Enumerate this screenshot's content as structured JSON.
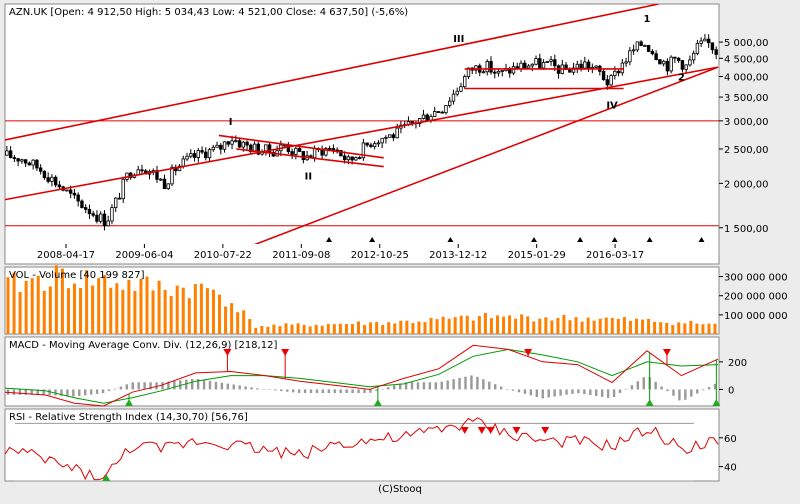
{
  "chart_data": {
    "type": "candlestick",
    "symbol": "AZN.UK",
    "main_title": "AZN.UK [Open: 4 912,50  High: 5 034,43  Low: 4 521,00  Close: 4 637,50] (-5,6%)",
    "x_tick_labels": [
      "2008-04-17",
      "2009-06-04",
      "2010-07-22",
      "2011-09-08",
      "2012-10-25",
      "2013-12-12",
      "2015-01-29",
      "2016-03-17"
    ],
    "x_ticks": [
      "2008-04-17",
      "2009-06-04",
      "2010-07-22",
      "2011-09-08",
      "2012-10-25",
      "2013-12-12",
      "2015-01-29",
      "2016-03-17"
    ],
    "x_range": [
      "2007-06-01",
      "2017-09-15"
    ],
    "price_scale": "log",
    "price_range": [
      1350,
      6400
    ],
    "y_tick_values": [
      1500,
      2000,
      2500,
      3000,
      3500,
      4000,
      4500,
      5000
    ],
    "y_tick_labels": [
      "1 500,00",
      "2 000,00",
      "2 500,00",
      "3 000,00",
      "3 500,00",
      "4 000,00",
      "4 500,00",
      "5 000,00"
    ],
    "horizontal_levels": [
      1520,
      3000
    ],
    "price_path": [
      [
        "2007-06-01",
        2400
      ],
      [
        "2007-09-01",
        2350
      ],
      [
        "2007-12-01",
        2200
      ],
      [
        "2008-03-01",
        2000
      ],
      [
        "2008-06-01",
        1800
      ],
      [
        "2008-09-15",
        1640
      ],
      [
        "2008-11-15",
        1560
      ],
      [
        "2009-01-15",
        1820
      ],
      [
        "2009-03-15",
        2150
      ],
      [
        "2009-05-15",
        2250
      ],
      [
        "2009-07-15",
        2150
      ],
      [
        "2009-09-15",
        2000
      ],
      [
        "2009-11-15",
        2200
      ],
      [
        "2010-01-15",
        2320
      ],
      [
        "2010-04-15",
        2450
      ],
      [
        "2010-07-01",
        2500
      ],
      [
        "2010-09-01",
        2700
      ],
      [
        "2010-11-01",
        2580
      ],
      [
        "2011-01-15",
        2500
      ],
      [
        "2011-04-01",
        2460
      ],
      [
        "2011-06-15",
        2560
      ],
      [
        "2011-08-15",
        2420
      ],
      [
        "2011-10-15",
        2380
      ],
      [
        "2011-12-15",
        2480
      ],
      [
        "2012-03-01",
        2520
      ],
      [
        "2012-05-15",
        2300
      ],
      [
        "2012-07-15",
        2470
      ],
      [
        "2012-09-15",
        2640
      ],
      [
        "2012-11-15",
        2700
      ],
      [
        "2013-01-15",
        2750
      ],
      [
        "2013-04-15",
        2950
      ],
      [
        "2013-07-15",
        3150
      ],
      [
        "2013-09-15",
        3250
      ],
      [
        "2013-12-01",
        3650
      ],
      [
        "2014-02-15",
        4200
      ],
      [
        "2014-05-01",
        4300
      ],
      [
        "2014-07-15",
        4050
      ],
      [
        "2014-10-15",
        4250
      ],
      [
        "2015-01-15",
        4350
      ],
      [
        "2015-04-15",
        4300
      ],
      [
        "2015-06-15",
        4150
      ],
      [
        "2015-08-15",
        4250
      ],
      [
        "2015-10-15",
        4350
      ],
      [
        "2016-01-01",
        4080
      ],
      [
        "2016-02-15",
        3800
      ],
      [
        "2016-04-15",
        4300
      ],
      [
        "2016-06-15",
        4700
      ],
      [
        "2016-08-15",
        5000
      ],
      [
        "2016-10-15",
        4650
      ],
      [
        "2016-12-15",
        4300
      ],
      [
        "2017-02-01",
        4500
      ],
      [
        "2017-04-01",
        4250
      ],
      [
        "2017-06-01",
        4900
      ],
      [
        "2017-08-01",
        4950
      ],
      [
        "2017-09-10",
        4640
      ]
    ],
    "trendlines": [
      {
        "color": "#dd0000",
        "from": [
          "2007-06-01",
          1800
        ],
        "to": [
          "2017-09-10",
          4250
        ]
      },
      {
        "color": "#dd0000",
        "from": [
          "2007-06-01",
          2650
        ],
        "to": [
          "2016-11-01",
          6400
        ]
      },
      {
        "color": "#dd0000",
        "from": [
          "2008-06-01",
          860
        ],
        "to": [
          "2017-09-10",
          4250
        ]
      },
      {
        "color": "#dd0000",
        "from": [
          "2010-07-01",
          2730
        ],
        "to": [
          "2012-11-15",
          2360
        ]
      },
      {
        "color": "#dd0000",
        "from": [
          "2010-10-01",
          2500
        ],
        "to": [
          "2012-11-15",
          2230
        ]
      },
      {
        "color": "#dd0000",
        "from": [
          "2014-01-15",
          4200
        ],
        "to": [
          "2016-05-01",
          4200
        ]
      },
      {
        "color": "#dd0000",
        "from": [
          "2014-01-15",
          3700
        ],
        "to": [
          "2016-05-01",
          3700
        ]
      }
    ],
    "wave_labels": [
      {
        "text": "I",
        "date": "2010-09-01",
        "price": 2920,
        "color": "#333399"
      },
      {
        "text": "II",
        "date": "2011-10-15",
        "price": 2050,
        "color": "#333399"
      },
      {
        "text": "III",
        "date": "2013-12-15",
        "price": 5000,
        "color": "#333399"
      },
      {
        "text": "IV",
        "date": "2016-03-01",
        "price": 3250,
        "color": "#333399"
      },
      {
        "text": "1",
        "date": "2016-09-01",
        "price": 5700,
        "color": "#cc0000"
      },
      {
        "text": "2",
        "date": "2017-03-01",
        "price": 3900,
        "color": "#cc0000"
      }
    ],
    "markers": [
      "2012-02-01",
      "2012-09-15",
      "2013-11-01",
      "2015-01-15",
      "2015-09-15",
      "2016-03-15",
      "2016-09-15",
      "2017-06-15"
    ],
    "volume": {
      "title": "VOL - Volume [40 199 827]",
      "y_tick_values": [
        100000000,
        200000000,
        300000000
      ],
      "y_tick_labels": [
        "100 000 000",
        "200 000 000",
        "300 000 000"
      ],
      "range": [
        0,
        350000000
      ],
      "bar_color": "#ff8000",
      "level_path": [
        [
          "2007-06-01",
          250000000
        ],
        [
          "2008-03-01",
          300000000
        ],
        [
          "2008-10-01",
          280000000
        ],
        [
          "2009-06-01",
          250000000
        ],
        [
          "2010-06-01",
          230000000
        ],
        [
          "2010-10-01",
          150000000
        ],
        [
          "2011-01-01",
          40000000
        ],
        [
          "2013-01-01",
          60000000
        ],
        [
          "2014-06-01",
          90000000
        ],
        [
          "2016-01-01",
          80000000
        ],
        [
          "2017-09-10",
          50000000
        ]
      ]
    },
    "macd": {
      "title": "MACD - Moving Average Conv. Div. (12,26,9) [218,12]",
      "y_tick_values": [
        0,
        200
      ],
      "y_tick_labels": [
        "0",
        "200"
      ],
      "range": [
        -120,
        380
      ],
      "macd_color": "#dd0000",
      "signal_color": "#009900",
      "hist_color": "#999999",
      "macd_path": [
        [
          "2007-06-01",
          -20
        ],
        [
          "2008-01-01",
          -40
        ],
        [
          "2008-06-01",
          -100
        ],
        [
          "2008-11-01",
          -120
        ],
        [
          "2009-04-01",
          -20
        ],
        [
          "2009-09-01",
          30
        ],
        [
          "2010-03-01",
          120
        ],
        [
          "2010-09-01",
          130
        ],
        [
          "2011-03-01",
          100
        ],
        [
          "2011-09-01",
          60
        ],
        [
          "2012-03-01",
          30
        ],
        [
          "2012-09-01",
          0
        ],
        [
          "2013-03-01",
          80
        ],
        [
          "2013-09-01",
          150
        ],
        [
          "2014-03-01",
          320
        ],
        [
          "2014-09-01",
          290
        ],
        [
          "2015-03-01",
          200
        ],
        [
          "2015-09-01",
          180
        ],
        [
          "2016-03-01",
          50
        ],
        [
          "2016-09-01",
          280
        ],
        [
          "2017-03-01",
          100
        ],
        [
          "2017-09-10",
          220
        ]
      ],
      "signal_path": [
        [
          "2007-06-01",
          10
        ],
        [
          "2008-01-01",
          -10
        ],
        [
          "2008-06-01",
          -60
        ],
        [
          "2008-11-01",
          -100
        ],
        [
          "2009-04-01",
          -60
        ],
        [
          "2009-09-01",
          -10
        ],
        [
          "2010-03-01",
          60
        ],
        [
          "2010-09-01",
          100
        ],
        [
          "2011-03-01",
          100
        ],
        [
          "2011-09-01",
          80
        ],
        [
          "2012-03-01",
          50
        ],
        [
          "2012-09-01",
          20
        ],
        [
          "2013-03-01",
          40
        ],
        [
          "2013-09-01",
          110
        ],
        [
          "2014-03-01",
          240
        ],
        [
          "2014-09-01",
          290
        ],
        [
          "2015-03-01",
          250
        ],
        [
          "2015-09-01",
          200
        ],
        [
          "2016-03-01",
          100
        ],
        [
          "2016-09-01",
          200
        ],
        [
          "2017-03-01",
          170
        ],
        [
          "2017-09-10",
          180
        ]
      ],
      "sell_markers": [
        "2010-08-15",
        "2011-06-15",
        "2014-12-15",
        "2016-12-15"
      ],
      "buy_markers": [
        "2009-03-15",
        "2012-10-15",
        "2016-09-15",
        "2017-09-01"
      ]
    },
    "rsi": {
      "title": "RSI - Relative Strength Index (14,30,70) [56,76]",
      "y_tick_values": [
        40,
        60
      ],
      "y_tick_labels": [
        "40",
        "60"
      ],
      "range": [
        30,
        80
      ],
      "levels": [
        30,
        70
      ],
      "line_color": "#dd0000",
      "rsi_path": [
        [
          "2007-06-01",
          52
        ],
        [
          "2008-01-01",
          45
        ],
        [
          "2008-06-01",
          38
        ],
        [
          "2008-11-01",
          31
        ],
        [
          "2009-04-01",
          55
        ],
        [
          "2009-09-01",
          52
        ],
        [
          "2010-03-01",
          58
        ],
        [
          "2010-09-01",
          56
        ],
        [
          "2011-03-01",
          52
        ],
        [
          "2011-09-01",
          48
        ],
        [
          "2012-03-01",
          56
        ],
        [
          "2012-09-01",
          58
        ],
        [
          "2013-03-01",
          60
        ],
        [
          "2013-09-01",
          66
        ],
        [
          "2014-03-01",
          71
        ],
        [
          "2014-09-01",
          63
        ],
        [
          "2015-03-01",
          58
        ],
        [
          "2015-09-01",
          57
        ],
        [
          "2016-03-01",
          54
        ],
        [
          "2016-09-01",
          66
        ],
        [
          "2017-03-01",
          53
        ],
        [
          "2017-09-10",
          57
        ]
      ],
      "sell_markers": [
        "2014-01-15",
        "2014-04-15",
        "2014-06-01",
        "2014-10-15",
        "2015-03-15"
      ],
      "buy_markers": [
        "2008-11-15"
      ]
    },
    "credit": "(C)Stooq"
  }
}
